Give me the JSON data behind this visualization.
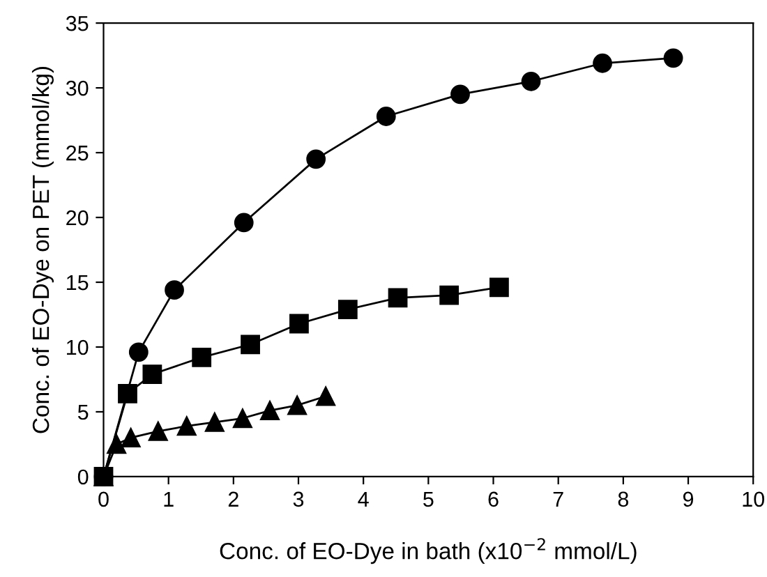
{
  "chart_data": {
    "type": "line",
    "xlabel": "Conc. of EO-Dye in bath (x10$^{−2}$ mmol/L)",
    "ylabel": "Conc. of EO-Dye on PET (mmol/kg)",
    "xlim": [
      0,
      10
    ],
    "ylim": [
      0,
      35
    ],
    "xticks": [
      0,
      1,
      2,
      3,
      4,
      5,
      6,
      7,
      8,
      9,
      10
    ],
    "yticks": [
      0,
      5,
      10,
      15,
      20,
      25,
      30,
      35
    ],
    "grid": false,
    "legend": false,
    "series": [
      {
        "color": "#000000",
        "marker": "circle",
        "x": [
          0,
          0.54,
          1.09,
          2.16,
          3.27,
          4.35,
          5.49,
          6.58,
          7.68,
          8.77
        ],
        "values": [
          0,
          9.6,
          14.4,
          19.6,
          24.5,
          27.8,
          29.5,
          30.5,
          31.9,
          32.3
        ]
      },
      {
        "color": "#000000",
        "marker": "square",
        "x": [
          0,
          0.37,
          0.75,
          1.51,
          2.26,
          3.01,
          3.76,
          4.53,
          5.32,
          6.09
        ],
        "values": [
          0,
          6.4,
          7.9,
          9.2,
          10.2,
          11.8,
          12.9,
          13.8,
          14.0,
          14.6
        ]
      },
      {
        "color": "#000000",
        "marker": "triangle",
        "x": [
          0,
          0.2,
          0.42,
          0.84,
          1.28,
          1.71,
          2.14,
          2.56,
          2.98,
          3.42
        ],
        "values": [
          0,
          2.5,
          3.0,
          3.5,
          3.9,
          4.2,
          4.5,
          5.1,
          5.5,
          6.2
        ]
      }
    ]
  }
}
